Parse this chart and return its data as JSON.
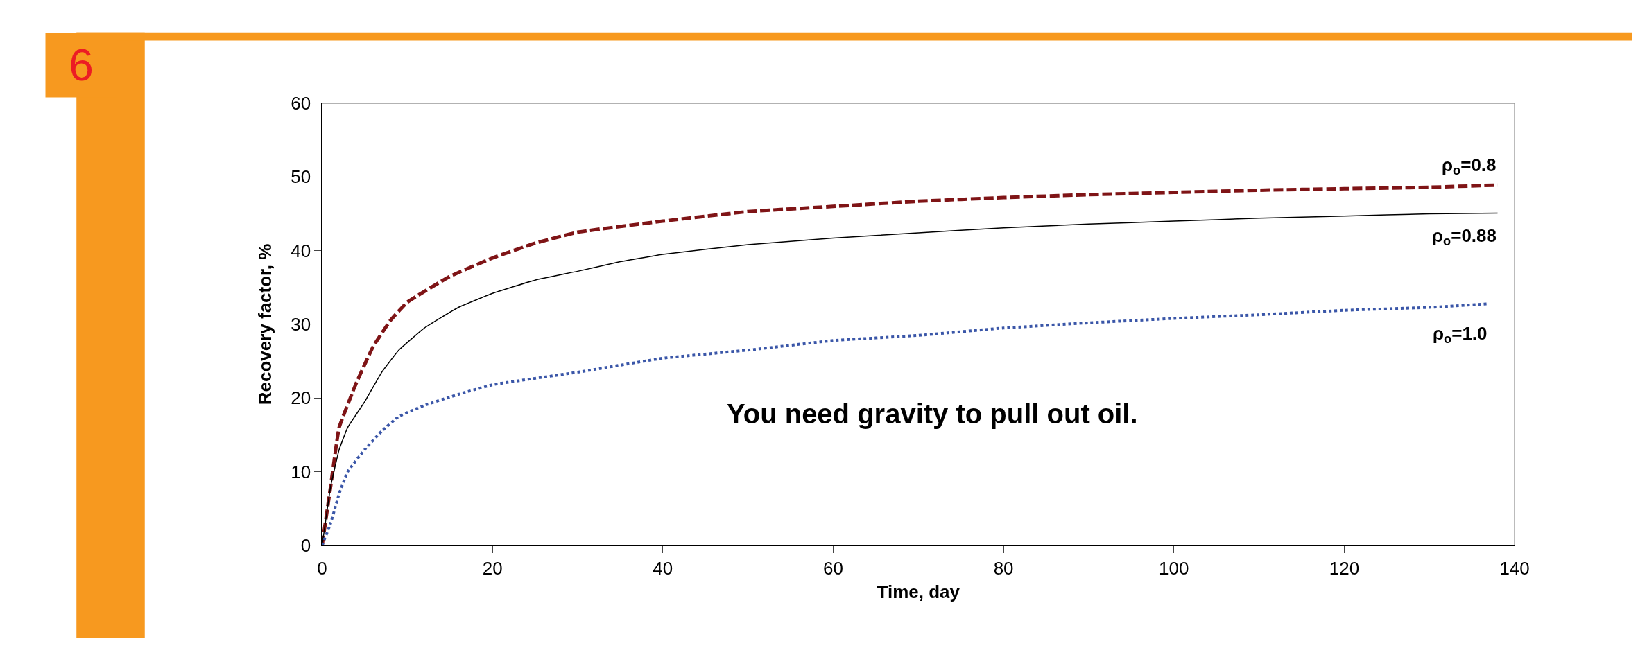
{
  "chart_data": {
    "type": "line",
    "xlabel": "Time, day",
    "ylabel": "Recovery factor, %",
    "xlim": [
      0,
      140
    ],
    "xticks": [
      0,
      20,
      40,
      60,
      80,
      100,
      120,
      140
    ],
    "ylim": [
      0,
      60
    ],
    "yticks": [
      0,
      10,
      20,
      30,
      40,
      50,
      60
    ],
    "legend": false,
    "marker": "none",
    "series": [
      {
        "name": "ρ$_{o}$=0.8",
        "color": "#7f1416",
        "line_style": "dashed",
        "x": [
          0,
          1,
          2,
          4,
          6,
          8,
          10,
          15,
          20,
          25,
          30,
          40,
          50,
          60,
          70,
          80,
          90,
          100,
          110,
          120,
          130,
          138
        ],
        "values": [
          0,
          8,
          16,
          22,
          27,
          30.5,
          33,
          36.5,
          39,
          41,
          42.5,
          44,
          45.3,
          46,
          46.7,
          47.2,
          47.6,
          47.9,
          48.2,
          48.4,
          48.6,
          48.9
        ]
      },
      {
        "name": "ρ$_{o}$=0.88",
        "color": "#000000",
        "line_style": "solid",
        "x": [
          0,
          0.5,
          1,
          2,
          3,
          5,
          7,
          9,
          12,
          16,
          20,
          25,
          30,
          35,
          40,
          50,
          60,
          70,
          80,
          90,
          100,
          110,
          120,
          130,
          138
        ],
        "values": [
          0,
          4,
          8,
          13,
          16,
          19.5,
          23.5,
          26.5,
          29.5,
          32.3,
          34.2,
          36,
          37.2,
          38.5,
          39.5,
          40.8,
          41.7,
          42.4,
          43.1,
          43.6,
          44,
          44.4,
          44.7,
          45,
          45.1
        ]
      },
      {
        "name": "ρ$_{o}$=1.0",
        "color": "#3a56a8",
        "line_style": "dotted",
        "x": [
          0,
          1,
          2,
          3,
          5,
          7,
          9,
          12,
          16,
          20,
          30,
          40,
          50,
          60,
          70,
          80,
          90,
          100,
          110,
          120,
          130,
          137
        ],
        "values": [
          0,
          3,
          7,
          10,
          13,
          15.5,
          17.5,
          19,
          20.5,
          21.8,
          23.5,
          25.4,
          26.5,
          27.8,
          28.5,
          29.5,
          30.2,
          30.8,
          31.3,
          31.9,
          32.3,
          32.8
        ]
      }
    ],
    "annotations": [
      "You need gravity to pull out oil.",
      "6"
    ]
  }
}
